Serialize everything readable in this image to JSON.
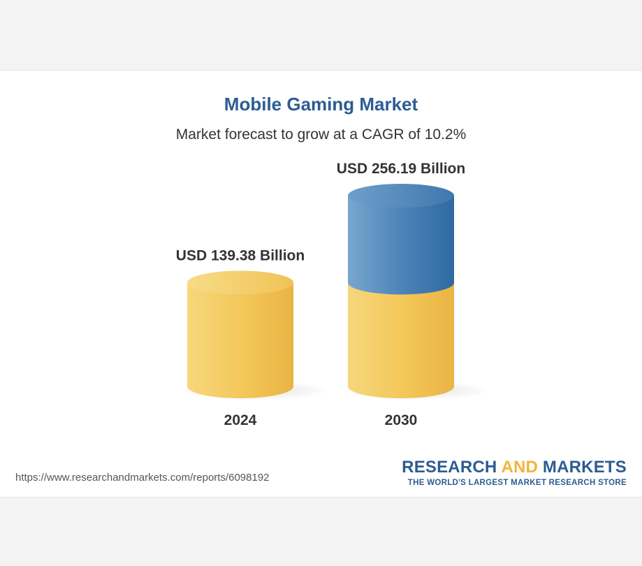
{
  "colors": {
    "title": "#2c5c93",
    "gold": "#f3c658",
    "gold_dark": "#eab343",
    "blue": "#4d84b8",
    "blue_dark": "#2f6aa3",
    "accent": "#f2b43b"
  },
  "chart_data": {
    "type": "bar",
    "title": "Mobile Gaming Market",
    "subtitle": "Market forecast to grow at a CAGR of 10.2%",
    "categories": [
      "2024",
      "2030"
    ],
    "values": [
      139.38,
      256.19
    ],
    "value_labels": [
      "USD 139.38 Billion",
      "USD 256.19 Billion"
    ],
    "base_value": 139.38,
    "xlabel": "",
    "ylabel": "",
    "grid": false,
    "legend": "none"
  },
  "footer": {
    "url": "https://www.researchandmarkets.com/reports/6098192",
    "brand_part1": "RESEARCH",
    "brand_part2": "AND",
    "brand_part3": "MARKETS",
    "tagline": "THE WORLD'S LARGEST MARKET RESEARCH STORE"
  }
}
